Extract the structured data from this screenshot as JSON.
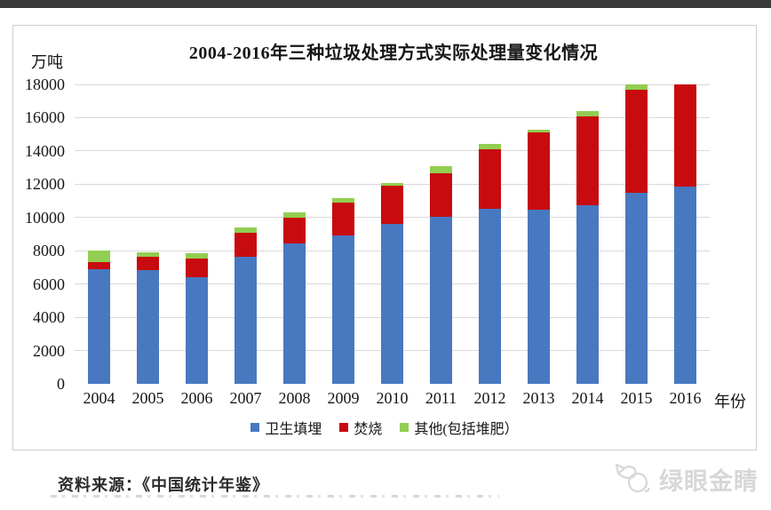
{
  "chart": {
    "title": "2004-2016年三种垃圾处理方式实际处理量变化情况",
    "unit_label": "万吨",
    "xaxis_label": "年份"
  },
  "chart_data": {
    "type": "bar",
    "stacked": true,
    "title": "2004-2016年三种垃圾处理方式实际处理量变化情况",
    "xlabel": "年份",
    "ylabel": "万吨",
    "ylim": [
      0,
      18000
    ],
    "ytick_step": 2000,
    "grid": "horizontal",
    "legend_position": "bottom",
    "categories": [
      "2004",
      "2005",
      "2006",
      "2007",
      "2008",
      "2009",
      "2010",
      "2011",
      "2012",
      "2013",
      "2014",
      "2015",
      "2016"
    ],
    "series": [
      {
        "name": "卫生填埋",
        "semantic": "landfill",
        "color": "#4878C0",
        "values": [
          6889,
          6858,
          6408,
          7633,
          8424,
          8899,
          9598,
          10064,
          10513,
          10493,
          10744,
          11483,
          11866
        ]
      },
      {
        "name": "焚烧",
        "semantic": "incineration",
        "color": "#C80B0E",
        "values": [
          450,
          791,
          1138,
          1435,
          1570,
          2022,
          2317,
          2599,
          3584,
          4634,
          5330,
          6176,
          7378
        ]
      },
      {
        "name": "其他(包括堆肥）",
        "semantic": "other-composting",
        "color": "#92CE51",
        "values": [
          660,
          234,
          293,
          337,
          314,
          257,
          180,
          427,
          326,
          176,
          330,
          356,
          430
        ]
      }
    ],
    "note_colors": {
      "gridline": "#d9d9d9",
      "chart_border": "#cdcdcd",
      "top_strip": "#3a3a3a"
    }
  },
  "footer": {
    "source": "资料来源：《中国统计年鉴》",
    "watermark": "绿眼金睛"
  }
}
